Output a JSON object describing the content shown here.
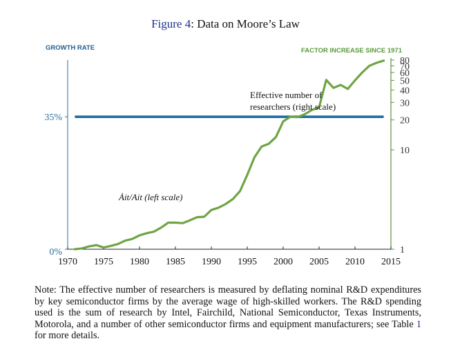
{
  "figure": {
    "number": "Figure 4",
    "separator": ":",
    "caption": "Data on Moore’s Law"
  },
  "colors": {
    "left_series": "#1c6ea4",
    "right_series": "#6fa444",
    "left_axis": "#2a6f9f",
    "right_axis": "#5e8f3c",
    "left_axis_title": "#1f5f93",
    "right_axis_title": "#5a9a3a",
    "figure_number": "#1f2f8a"
  },
  "chart_data": {
    "type": "line",
    "title": "",
    "x_axis": {
      "label": "",
      "range": [
        1970,
        2015
      ],
      "ticks": [
        "1970",
        "1975",
        "1980",
        "1985",
        "1990",
        "1995",
        "2000",
        "2005",
        "2010",
        "2015"
      ]
    },
    "left_axis": {
      "title": "GROWTH RATE",
      "range": [
        0,
        0.5
      ],
      "ticks": [
        {
          "value": 0,
          "label": "0%"
        },
        {
          "value": 0.35,
          "label": "35%"
        }
      ]
    },
    "right_axis": {
      "title": "FACTOR INCREASE SINCE 1971",
      "scale": "log",
      "range": [
        1,
        80
      ],
      "ticks": [
        {
          "value": 1,
          "label": "1"
        },
        {
          "value": 10,
          "label": "10"
        },
        {
          "value": 20,
          "label": "20"
        },
        {
          "value": 30,
          "label": "30"
        },
        {
          "value": 40,
          "label": "40"
        },
        {
          "value": 50,
          "label": "50"
        },
        {
          "value": 60,
          "label": "60"
        },
        {
          "value": 70,
          "label": "70"
        },
        {
          "value": 80,
          "label": "80"
        }
      ]
    },
    "grid": false,
    "series": [
      {
        "name": "Ȧit/Ait (left scale)",
        "axis": "left",
        "x": [
          1971,
          2014
        ],
        "values": [
          0.35,
          0.35
        ]
      },
      {
        "name": "Effective number of researchers (right scale)",
        "axis": "right",
        "x": [
          1971,
          1972,
          1973,
          1974,
          1975,
          1976,
          1977,
          1978,
          1979,
          1980,
          1981,
          1982,
          1983,
          1984,
          1985,
          1986,
          1987,
          1988,
          1989,
          1990,
          1991,
          1992,
          1993,
          1994,
          1995,
          1996,
          1997,
          1998,
          1999,
          2000,
          2001,
          2002,
          2003,
          2004,
          2005,
          2006,
          2007,
          2008,
          2009,
          2010,
          2011,
          2012,
          2013,
          2014
        ],
        "values": [
          1.0,
          1.02,
          1.07,
          1.1,
          1.04,
          1.08,
          1.13,
          1.22,
          1.27,
          1.38,
          1.45,
          1.5,
          1.65,
          1.85,
          1.85,
          1.83,
          1.95,
          2.1,
          2.12,
          2.48,
          2.62,
          2.85,
          3.2,
          3.85,
          5.6,
          8.4,
          10.8,
          11.5,
          13.5,
          19.3,
          21.5,
          21.3,
          22.8,
          25.2,
          26.8,
          50.5,
          42.0,
          45.0,
          41.0,
          50.0,
          60.0,
          70.0,
          75.0,
          79.0
        ]
      }
    ],
    "annotations": [
      {
        "text": "Effective number of researchers (right scale)",
        "lines": [
          "Effective number of",
          "researchers (right scale)"
        ]
      },
      {
        "text": "Ȧit/Ait (left scale)"
      }
    ]
  },
  "note": {
    "text_before": "Note: The effective number of researchers is measured by deflating nominal R&D expenditures by key semiconductor firms by the average wage of high-skilled workers. The R&D spending used is the sum of research by Intel, Fairchild, National Semiconductor, Texas Instruments, Motorola, and a number of other semiconductor firms and equipment manufacturers; see Table ",
    "table_ref": "1",
    "text_after": " for more details."
  }
}
